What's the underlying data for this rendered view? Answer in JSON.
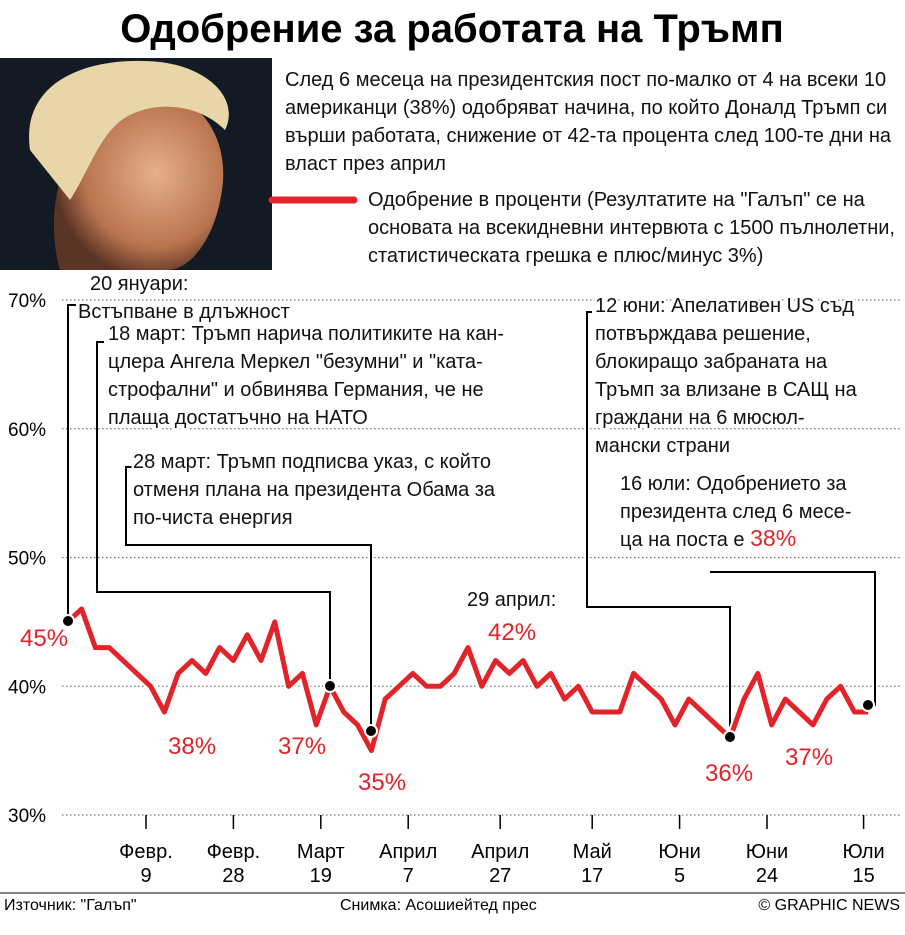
{
  "chart_data": {
    "type": "line",
    "title": "Одобрение за работата на Тръмп",
    "subtitle": "След 6 месеца на президентския пост по-малко от 4 на всеки 10 американци (38%) одобряват начина, по който Доналд Тръмп си върши работата, снижение от 42-та процента след 100-те дни на власт през април",
    "x": [
      "01-23",
      "01-26",
      "01-29",
      "02-01",
      "02-04",
      "02-07",
      "02-10",
      "02-13",
      "02-16",
      "02-19",
      "02-22",
      "02-25",
      "02-28",
      "03-03",
      "03-06",
      "03-09",
      "03-12",
      "03-15",
      "03-18",
      "03-21",
      "03-24",
      "03-27",
      "03-30",
      "04-02",
      "04-05",
      "04-08",
      "04-11",
      "04-14",
      "04-17",
      "04-20",
      "04-23",
      "04-26",
      "04-29",
      "05-02",
      "05-05",
      "05-08",
      "05-11",
      "05-14",
      "05-17",
      "05-20",
      "05-23",
      "05-26",
      "05-29",
      "06-01",
      "06-04",
      "06-07",
      "06-10",
      "06-13",
      "06-16",
      "06-19",
      "06-22",
      "06-25",
      "06-28",
      "07-01",
      "07-04",
      "07-07",
      "07-10",
      "07-13",
      "07-16"
    ],
    "series": [
      {
        "name": "Одобрение в проценти (Резултатите на \"Галъп\" се на основата на всекидневни интервюта с 1500 пълнолетни, статистическата грешка е плюс/минус 3%)",
        "color": "#e2232a",
        "values": [
          45,
          46,
          43,
          43,
          42,
          41,
          40,
          38,
          41,
          42,
          41,
          43,
          42,
          44,
          42,
          45,
          40,
          41,
          37,
          40,
          38,
          37,
          35,
          39,
          40,
          41,
          40,
          40,
          41,
          43,
          40,
          42,
          41,
          42,
          40,
          41,
          39,
          40,
          38,
          38,
          38,
          41,
          40,
          39,
          37,
          39,
          38,
          37,
          36,
          39,
          41,
          37,
          39,
          38,
          37,
          39,
          40,
          38,
          38
        ]
      }
    ],
    "ylim": [
      30,
      70
    ],
    "yticks": [
      {
        "value": 30,
        "label": "30%"
      },
      {
        "value": 40,
        "label": "40%"
      },
      {
        "value": 50,
        "label": "50%"
      },
      {
        "value": 60,
        "label": "60%"
      },
      {
        "value": 70,
        "label": "70%"
      }
    ],
    "xticks": [
      {
        "value": "02-09",
        "label": [
          "Февр.",
          "9"
        ]
      },
      {
        "value": "02-28",
        "label": [
          "Февр.",
          "28"
        ]
      },
      {
        "value": "03-19",
        "label": [
          "Март",
          "19"
        ]
      },
      {
        "value": "04-07",
        "label": [
          "Април",
          "7"
        ]
      },
      {
        "value": "04-27",
        "label": [
          "Април",
          "27"
        ]
      },
      {
        "value": "05-17",
        "label": [
          "Май",
          "17"
        ]
      },
      {
        "value": "06-05",
        "label": [
          "Юни",
          "5"
        ]
      },
      {
        "value": "06-24",
        "label": [
          "Юни",
          "24"
        ]
      },
      {
        "value": "07-15",
        "label": [
          "Юли",
          "15"
        ]
      }
    ],
    "grid": true,
    "annotations": [
      {
        "lines": [
          "20 януари:",
          "Встъпване в длъжност"
        ]
      },
      {
        "lines": [
          "18 март: Тръмп нарича политиките на кан-",
          "цлера Ангела Меркел \"безумни\" и \"ката-",
          "строфални\" и обвинява Германия, че не",
          "плаща достатъчно на НАТО"
        ]
      },
      {
        "lines": [
          "28 март: Тръмп подписва указ, с който",
          "отменя плана на президента Обама за",
          "по-чиста енергия"
        ]
      },
      {
        "lines": [
          "12 юни: Апелативен US съд",
          "потвърждава решение,",
          "блокиращо забраната на",
          "Тръмп за влизане в САЩ на",
          "граждани на 6 мюсюл-",
          "мански страни"
        ]
      },
      {
        "lines": [
          "16 юли: Одобрението за",
          "президента след 6 месе-",
          "ца на поста е "
        ],
        "highlight": {
          "value": 38,
          "label": "38%"
        }
      },
      {
        "lines": [
          "29 април:"
        ]
      }
    ],
    "callouts": [
      {
        "value": 45,
        "label": "45%"
      },
      {
        "value": 38,
        "label": "38%"
      },
      {
        "value": 37,
        "label": "37%"
      },
      {
        "value": 35,
        "label": "35%"
      },
      {
        "value": 42,
        "label": "42%"
      },
      {
        "value": 36,
        "label": "36%"
      },
      {
        "value": 37,
        "label": "37%"
      }
    ],
    "footer": {
      "source": "Източник: \"Галъп\"",
      "photo": "Снимка: Асошиейтед прес",
      "credit": "© GRAPHIC NEWS"
    }
  }
}
